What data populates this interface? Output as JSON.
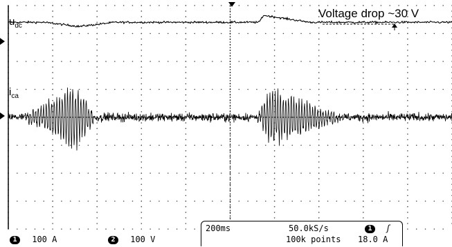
{
  "chart_data": {
    "type": "line",
    "title": "",
    "xlabel": "",
    "ylabel": "",
    "grid": true,
    "series": [
      {
        "name": "u_dc",
        "label_main": "u",
        "label_sub": "dc",
        "baseline_div": 3.4,
        "noise_div": 0.06,
        "events": [
          {
            "type": "dip",
            "t_start_div": 0.8,
            "t_min_div": 1.6,
            "t_end_div": 2.4,
            "depth_div": 0.15
          },
          {
            "type": "step",
            "t_start_div": 5.65,
            "t_peak_div": 5.75,
            "t_end_div": 6.8,
            "height_div": 0.25
          }
        ]
      },
      {
        "name": "i_ca",
        "label_main": "i",
        "label_sub": "ca",
        "baseline_div": 0.0,
        "noise_div": 0.18,
        "bursts": [
          {
            "t_start_div": 0.3,
            "t_peak_div": 1.5,
            "t_end_div": 2.0,
            "amplitude_div": 1.25,
            "cycle_div": 0.06
          },
          {
            "t_start_div": 5.6,
            "t_peak_div": 5.9,
            "t_end_div": 7.6,
            "amplitude_div": 1.1,
            "cycle_div": 0.06
          }
        ]
      }
    ],
    "annotation": {
      "text": "Voltage drop ~30 V"
    }
  },
  "readout": {
    "ch1_badge": "1",
    "ch1_scale": "100 A",
    "ch2_badge": "2",
    "ch2_scale": "100 V",
    "timebase": "200ms",
    "sample_rate": "50.0kS/s",
    "record_length": "100k points",
    "trig_badge": "1",
    "trig_slope": "ʃ",
    "trig_level": "18.0 A"
  }
}
